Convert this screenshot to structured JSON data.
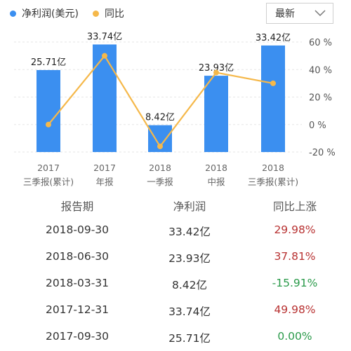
{
  "legend": {
    "bar_label": "净利润(美元)",
    "line_label": "同比",
    "bar_color": "#3b8ff0",
    "line_color": "#f5b84a"
  },
  "dropdown": {
    "selected": "最新"
  },
  "chart_data": {
    "type": "bar",
    "categories": [
      [
        "2017",
        "三季报(累计)"
      ],
      [
        "2017",
        "年报"
      ],
      [
        "2018",
        "一季报"
      ],
      [
        "2018",
        "中报"
      ],
      [
        "2018",
        "三季报(累计)"
      ]
    ],
    "series": [
      {
        "name": "净利润(美元)",
        "type": "bar",
        "values": [
          25.71,
          33.74,
          8.42,
          23.93,
          33.42
        ],
        "data_labels": [
          "25.71亿",
          "33.74亿",
          "8.42亿",
          "23.93亿",
          "33.42亿"
        ],
        "unit": "亿"
      },
      {
        "name": "同比",
        "type": "line",
        "values": [
          0.0,
          49.98,
          -15.91,
          37.81,
          29.98
        ],
        "unit": "%"
      }
    ],
    "y_left_range": [
      0,
      34.5
    ],
    "y_right_ticks": [
      "60 %",
      "40 %",
      "20 %",
      "0 %",
      "-20 %"
    ],
    "y_right_range": [
      -20,
      60
    ]
  },
  "table": {
    "headers": [
      "报告期",
      "净利润",
      "同比上涨"
    ],
    "rows": [
      {
        "period": "2018-09-30",
        "profit": "33.42亿",
        "yoy": "29.98%",
        "sign": "pos"
      },
      {
        "period": "2018-06-30",
        "profit": "23.93亿",
        "yoy": "37.81%",
        "sign": "pos"
      },
      {
        "period": "2018-03-31",
        "profit": "8.42亿",
        "yoy": "-15.91%",
        "sign": "neg"
      },
      {
        "period": "2017-12-31",
        "profit": "33.74亿",
        "yoy": "49.98%",
        "sign": "pos"
      },
      {
        "period": "2017-09-30",
        "profit": "25.71亿",
        "yoy": "0.00%",
        "sign": "zero"
      }
    ]
  }
}
